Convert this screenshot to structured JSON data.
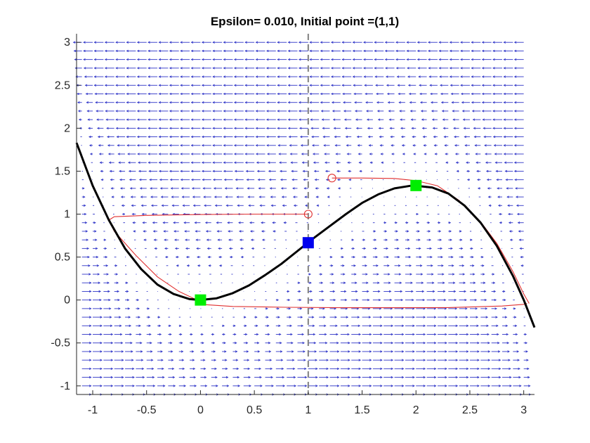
{
  "chart_data": {
    "type": "line",
    "title": "Epsilon= 0.010, Initial point =(1,1)",
    "xlabel": "",
    "ylabel": "",
    "xlim": [
      -1.15,
      3.1
    ],
    "ylim": [
      -1.1,
      3.1
    ],
    "x_ticks": [
      -1,
      -0.5,
      0,
      0.5,
      1,
      1.5,
      2,
      2.5,
      3
    ],
    "x_tick_labels": [
      "-1",
      "-0.5",
      "0",
      "0.5",
      "1",
      "1.5",
      "2",
      "2.5",
      "3"
    ],
    "y_ticks": [
      -1,
      -0.5,
      0,
      0.5,
      1,
      1.5,
      2,
      2.5,
      3
    ],
    "y_tick_labels": [
      "-1",
      "-0.5",
      "0",
      "0.5",
      "1",
      "1.5",
      "2",
      "2.5",
      "3"
    ],
    "grid": false,
    "colors": {
      "field": "#2f35c8",
      "nullcline": "#000000",
      "trajectory": "#e03030",
      "stable": "#00ee00",
      "unstable": "#0000ee",
      "separator": "#808080",
      "axis": "#262626"
    },
    "vector_field": {
      "x_start": -1.1,
      "x_step": 0.1,
      "x_count": 42,
      "y_start": -1.1,
      "y_step": 0.1,
      "y_count": 42,
      "direction": "horizontal, pointing toward the curve"
    },
    "nullcline_curve": {
      "formula": "y = x^2 - x^3/3",
      "x": [
        -1.15,
        -1.0,
        -0.85,
        -0.7,
        -0.55,
        -0.4,
        -0.25,
        -0.1,
        0.0,
        0.15,
        0.3,
        0.45,
        0.6,
        0.75,
        0.9,
        1.05,
        1.2,
        1.35,
        1.5,
        1.65,
        1.8,
        1.95,
        2.0,
        2.15,
        2.3,
        2.45,
        2.6,
        2.75,
        2.9,
        3.0,
        3.1
      ],
      "y": [
        1.83,
        1.33,
        0.93,
        0.6,
        0.36,
        0.18,
        0.07,
        0.01,
        0.0,
        0.02,
        0.08,
        0.17,
        0.29,
        0.42,
        0.57,
        0.72,
        0.86,
        1.0,
        1.13,
        1.23,
        1.3,
        1.33,
        1.33,
        1.31,
        1.24,
        1.1,
        0.9,
        0.63,
        0.28,
        0.0,
        -0.32
      ]
    },
    "vertical_line": {
      "x": 1.0,
      "style": "dashed"
    },
    "trajectories": [
      {
        "start": [
          1.0,
          1.0
        ],
        "x": [
          1.0,
          0.5,
          0.0,
          -0.5,
          -0.8,
          -0.85,
          -0.8,
          -0.6,
          -0.4,
          -0.2,
          -0.05,
          0.0,
          0.3,
          0.8,
          1.3,
          1.8,
          2.3,
          2.8,
          3.0,
          3.03
        ],
        "y": [
          1.0,
          1.0,
          0.995,
          0.985,
          0.97,
          0.93,
          0.8,
          0.52,
          0.27,
          0.1,
          0.01,
          -0.05,
          -0.075,
          -0.085,
          -0.09,
          -0.09,
          -0.088,
          -0.07,
          -0.05,
          -0.04
        ]
      },
      {
        "start": [
          1.22,
          1.42
        ],
        "x": [
          1.22,
          1.5,
          1.8,
          2.0,
          2.2,
          2.4,
          2.6,
          2.75,
          2.9,
          3.0,
          3.05
        ],
        "y": [
          1.42,
          1.42,
          1.415,
          1.39,
          1.33,
          1.16,
          0.91,
          0.66,
          0.33,
          0.07,
          -0.04
        ]
      }
    ],
    "fixed_points": [
      {
        "x": 0.0,
        "y": 0.0,
        "kind": "stable"
      },
      {
        "x": 2.0,
        "y": 1.333,
        "kind": "stable"
      },
      {
        "x": 1.0,
        "y": 0.667,
        "kind": "unstable"
      }
    ]
  }
}
